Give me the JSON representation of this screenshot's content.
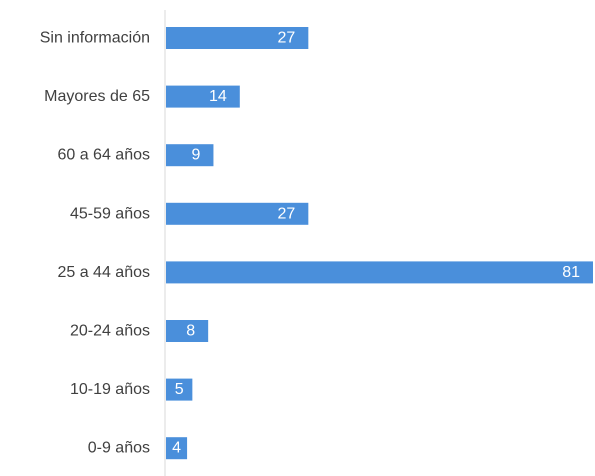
{
  "chart_data": {
    "type": "bar",
    "orientation": "horizontal",
    "title": "",
    "xlabel": "",
    "ylabel": "",
    "categories": [
      "Sin información",
      "Mayores de 65",
      "60 a 64 años",
      "45-59 años",
      "25 a 44 años",
      "20-24 años",
      "10-19 años",
      "0-9 años"
    ],
    "values": [
      27,
      14,
      9,
      27,
      81,
      8,
      5,
      4
    ],
    "value_labels": [
      "27",
      "14",
      "9",
      "27",
      "81",
      "8",
      "5",
      "4"
    ],
    "xlim": [
      0,
      81
    ],
    "grid": false,
    "legend": "none",
    "bar_color": "#4A8FDB",
    "axis_color": "#D9D9D9",
    "text_color": "#404040",
    "label_color": "#FFFFFF"
  }
}
